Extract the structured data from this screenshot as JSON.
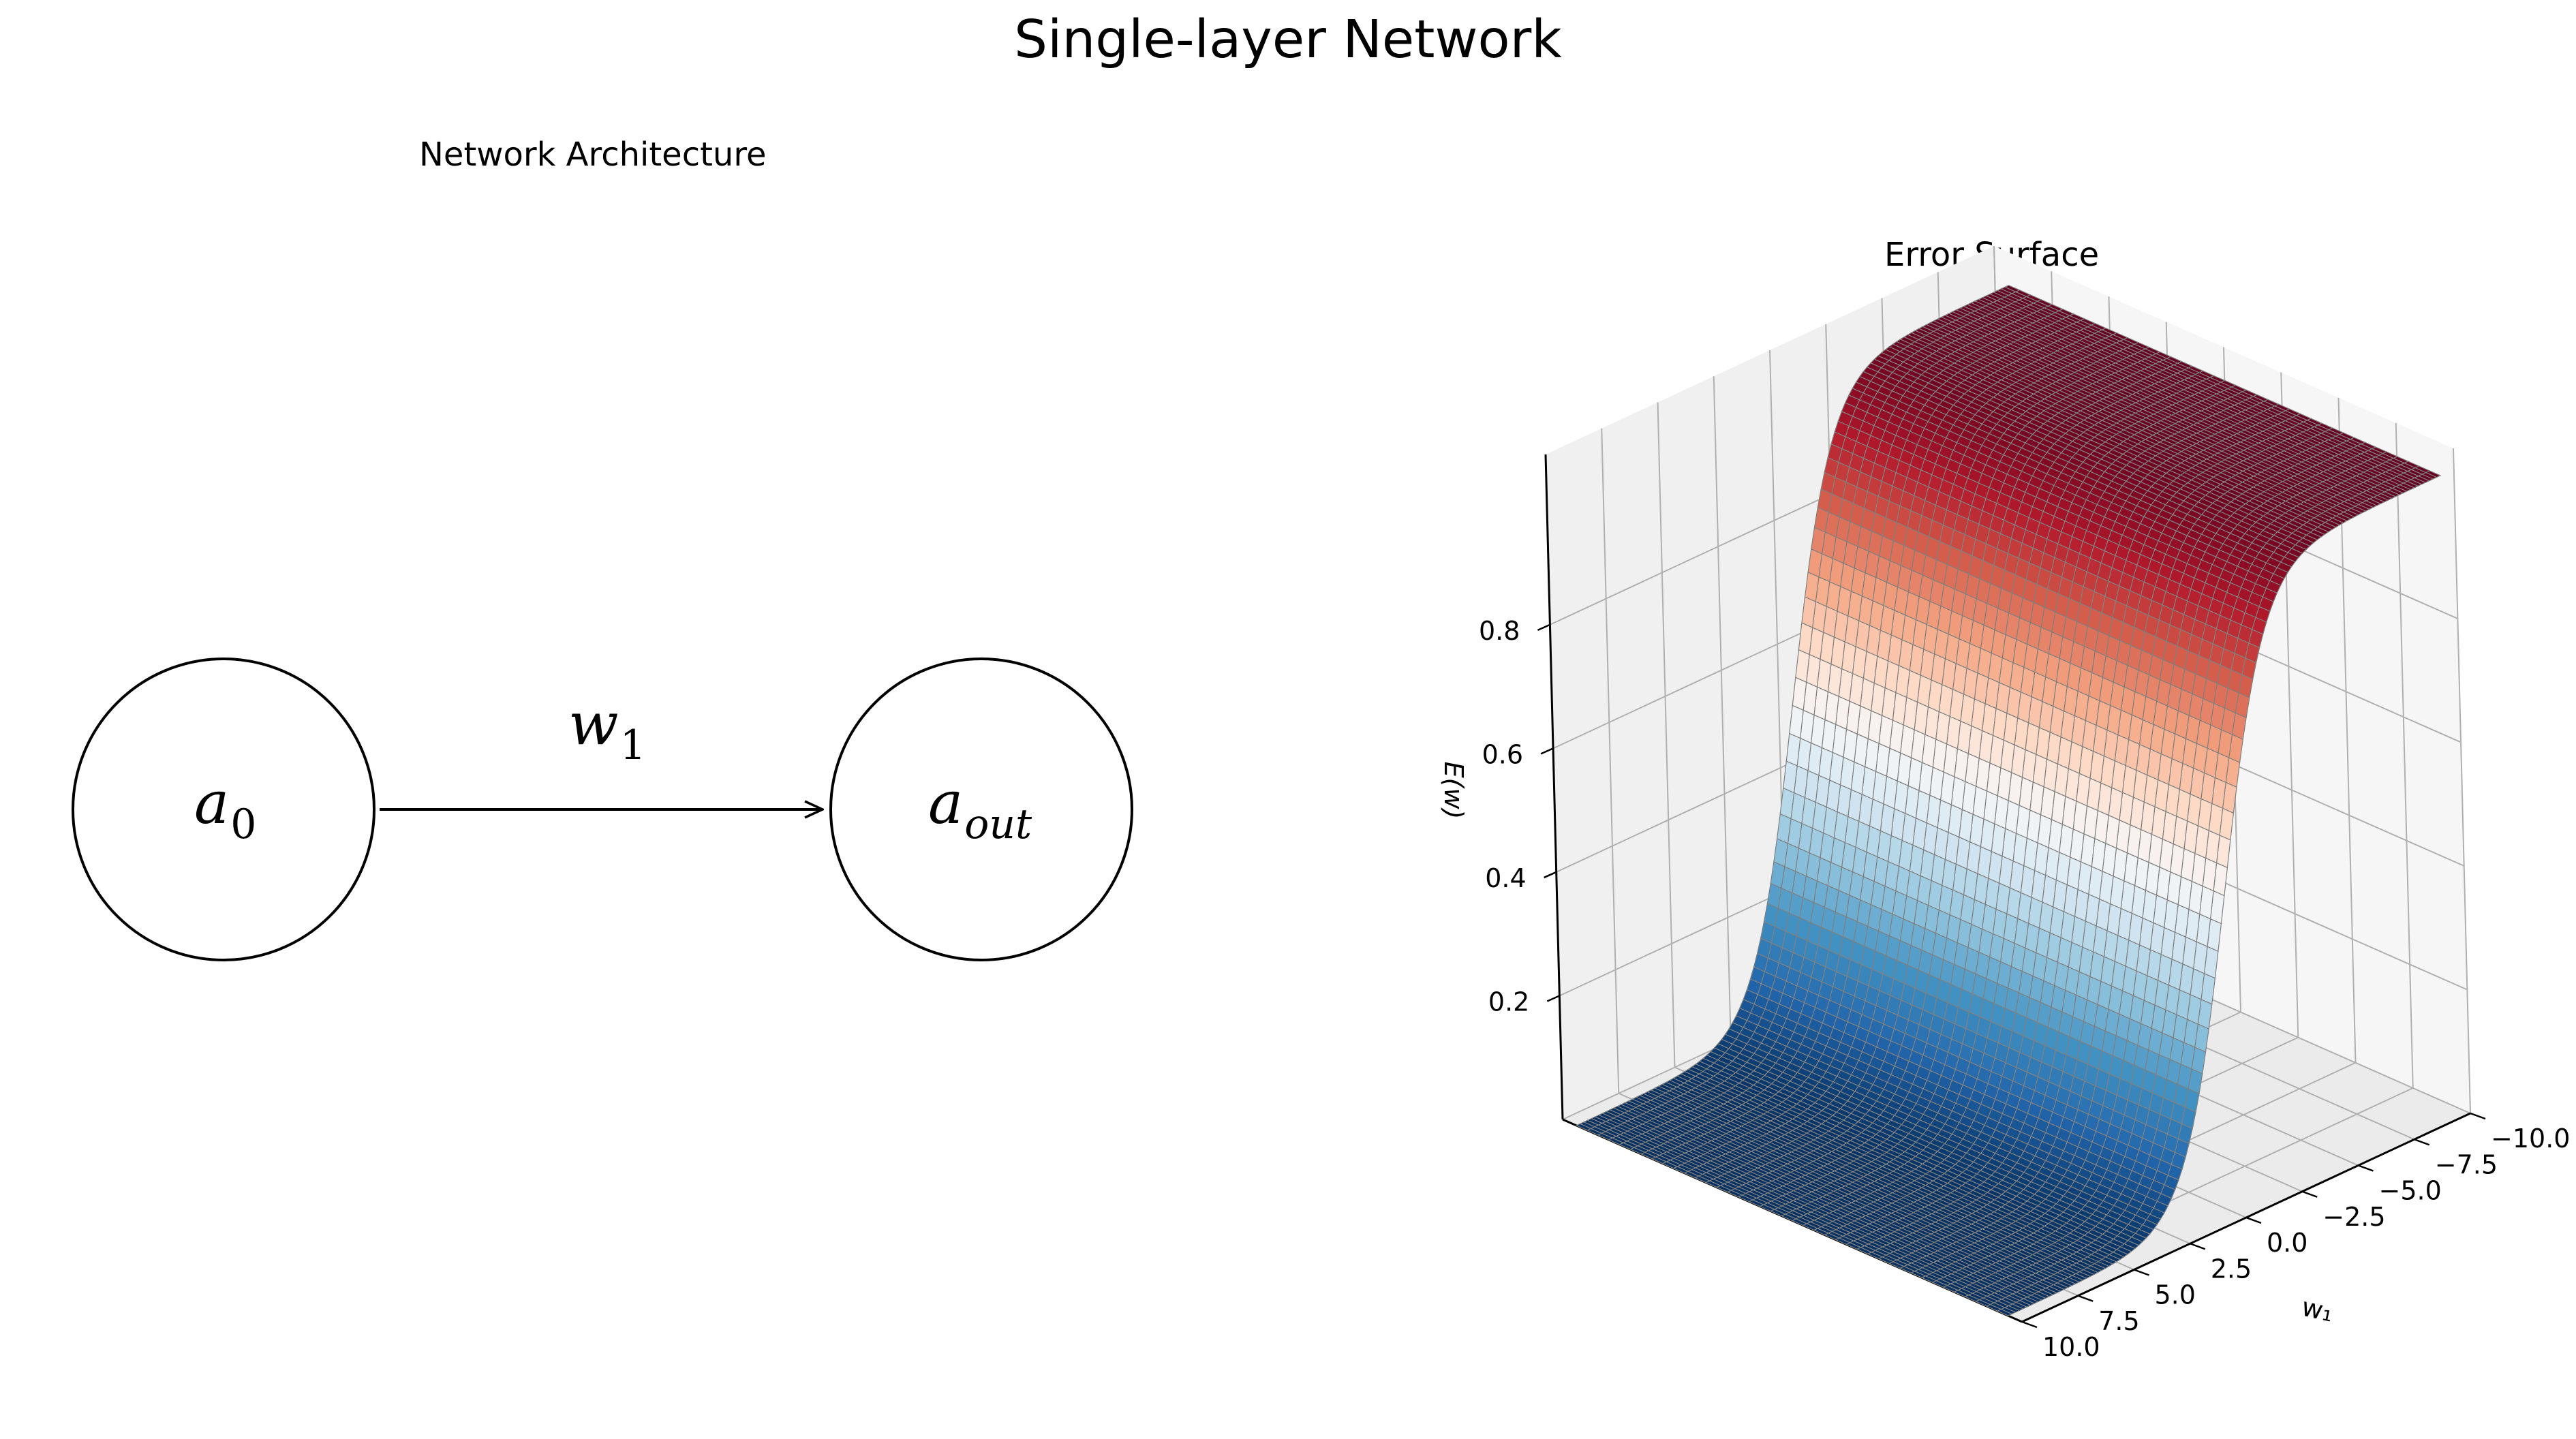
{
  "figure": {
    "title": "Single-layer Network"
  },
  "architecture": {
    "title": "Network Architecture",
    "nodes": [
      {
        "symbol": "a",
        "subscript": "0"
      },
      {
        "symbol": "a",
        "subscript": "out"
      }
    ],
    "edge": {
      "symbol": "w",
      "subscript": "1"
    }
  },
  "chart_data": {
    "type": "surface",
    "title": "Error Surface",
    "xlabel": "w₁",
    "ylabel": "",
    "zlabel": "E(w)",
    "x_ticks": [
      "10.0",
      "7.5",
      "5.0",
      "2.5",
      "0.0",
      "−2.5",
      "−5.0",
      "−7.5",
      "−10.0"
    ],
    "z_ticks": [
      "0.2",
      "0.4",
      "0.6",
      "0.8"
    ],
    "xlim": [
      -10,
      10
    ],
    "zlim": [
      0,
      1
    ],
    "function": "sigmoid",
    "colormap": "RdBu_r",
    "edge_color": "#808080",
    "profile": {
      "w1": [
        10.0,
        7.5,
        5.0,
        2.5,
        1.0,
        0.5,
        0.0,
        -0.5,
        -1.0,
        -2.5,
        -5.0,
        -7.5,
        -10.0
      ],
      "E": [
        5e-05,
        0.0006,
        0.007,
        0.076,
        0.269,
        0.378,
        0.5,
        0.622,
        0.731,
        0.924,
        0.993,
        0.9994,
        0.99995
      ]
    },
    "colors": {
      "pane_left": "#f0f0f0",
      "pane_right": "#f6f6f6",
      "pane_floor": "#ebebeb",
      "grid": "#b0b0b0"
    }
  }
}
